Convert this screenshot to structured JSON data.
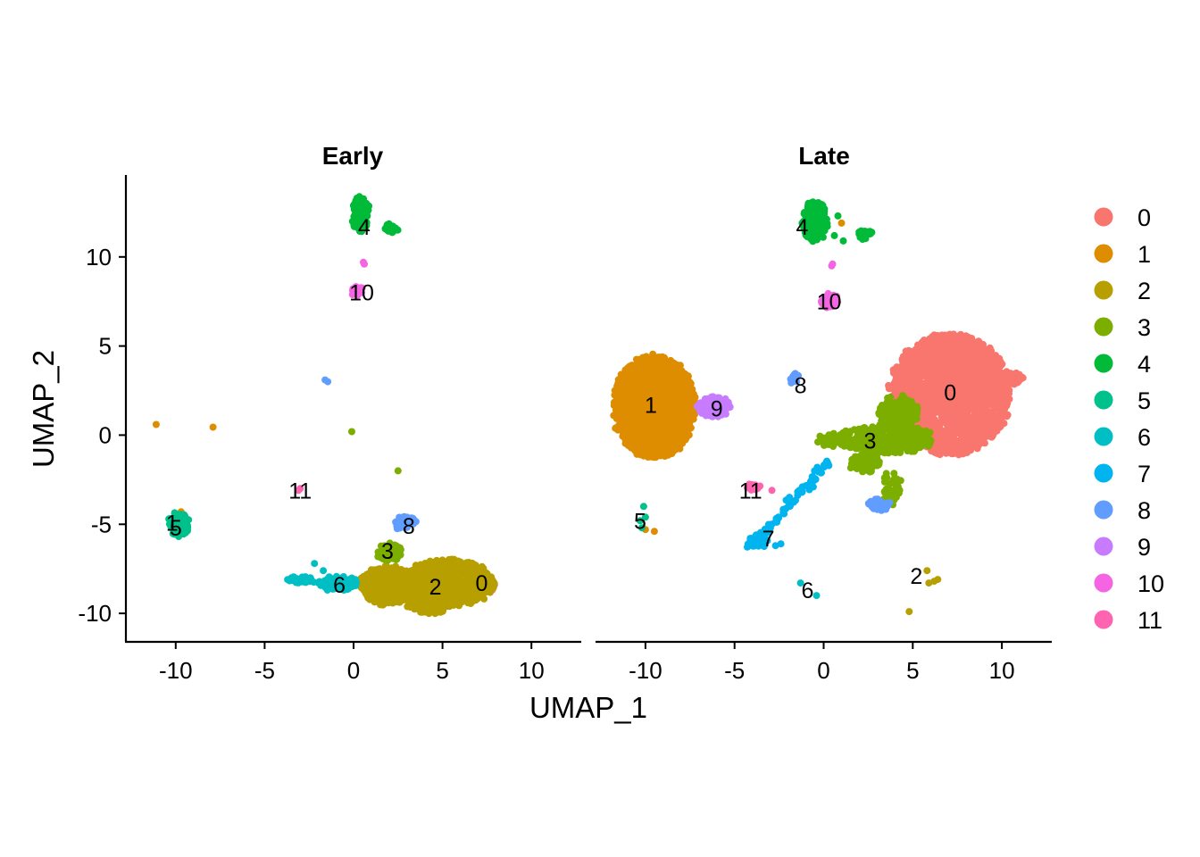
{
  "chart_data": {
    "type": "scatter",
    "xlabel": "UMAP_1",
    "ylabel": "UMAP_2",
    "xlim": [
      -12.8,
      12.8
    ],
    "ylim": [
      -11.6,
      14.6
    ],
    "x_ticks": [
      -10,
      -5,
      0,
      5,
      10
    ],
    "y_ticks": [
      -10,
      -5,
      0,
      5,
      10
    ],
    "x_tick_labels": [
      "-10",
      "-5",
      "0",
      "5",
      "10"
    ],
    "y_tick_labels": [
      "-10",
      "-5",
      "0",
      "5",
      "10"
    ],
    "legend_position": "right",
    "legend": [
      {
        "label": "0",
        "color": "#F8766D"
      },
      {
        "label": "1",
        "color": "#DE8C00"
      },
      {
        "label": "2",
        "color": "#B79F00"
      },
      {
        "label": "3",
        "color": "#7CAE00"
      },
      {
        "label": "4",
        "color": "#00BA38"
      },
      {
        "label": "5",
        "color": "#00C08B"
      },
      {
        "label": "6",
        "color": "#00BFC4"
      },
      {
        "label": "7",
        "color": "#00B4F0"
      },
      {
        "label": "8",
        "color": "#619CFF"
      },
      {
        "label": "9",
        "color": "#C77CFF"
      },
      {
        "label": "10",
        "color": "#F564E3"
      },
      {
        "label": "11",
        "color": "#FF64B0"
      }
    ],
    "facets": [
      {
        "title": "Early",
        "clusters": [
          {
            "cluster": "0",
            "shape": "blob",
            "cx": 7.3,
            "cy": -8.4,
            "rx": 0.7,
            "ry": 0.4,
            "n": 50
          },
          {
            "cluster": "1",
            "shape": "points",
            "points": [
              [
                -11.1,
                0.6
              ],
              [
                -7.9,
                0.45
              ],
              [
                -9.7,
                -4.3
              ],
              [
                -9.5,
                -4.5
              ]
            ]
          },
          {
            "cluster": "2",
            "shape": "blob",
            "cx": 5.3,
            "cy": -8.3,
            "rx": 2.6,
            "ry": 1.3,
            "n": 700
          },
          {
            "cluster": "2",
            "shape": "blob",
            "cx": 1.8,
            "cy": -8.4,
            "rx": 1.4,
            "ry": 1.1,
            "n": 320
          },
          {
            "cluster": "2",
            "shape": "blob",
            "cx": 4.2,
            "cy": -9.5,
            "rx": 1.2,
            "ry": 0.5,
            "n": 120
          },
          {
            "cluster": "3",
            "shape": "blob",
            "cx": 2.0,
            "cy": -6.6,
            "rx": 0.7,
            "ry": 0.5,
            "n": 60
          },
          {
            "cluster": "3",
            "shape": "points",
            "points": [
              [
                -0.1,
                0.2
              ],
              [
                2.5,
                -2.0
              ]
            ]
          },
          {
            "cluster": "4",
            "shape": "blob",
            "cx": 0.4,
            "cy": 12.4,
            "rx": 0.45,
            "ry": 1.0,
            "n": 110
          },
          {
            "cluster": "4",
            "shape": "blob",
            "cx": 2.1,
            "cy": 11.6,
            "rx": 0.35,
            "ry": 0.25,
            "n": 25
          },
          {
            "cluster": "5",
            "shape": "blob",
            "cx": -9.8,
            "cy": -5.0,
            "rx": 0.55,
            "ry": 0.6,
            "n": 170
          },
          {
            "cluster": "6",
            "shape": "blob",
            "cx": -0.9,
            "cy": -8.3,
            "rx": 1.1,
            "ry": 0.35,
            "n": 90
          },
          {
            "cluster": "6",
            "shape": "blob",
            "cx": -2.9,
            "cy": -8.1,
            "rx": 0.8,
            "ry": 0.15,
            "n": 40
          },
          {
            "cluster": "6",
            "shape": "points",
            "points": [
              [
                -2.2,
                -7.2
              ],
              [
                -1.7,
                -7.6
              ]
            ]
          },
          {
            "cluster": "8",
            "shape": "blob",
            "cx": 2.9,
            "cy": -4.9,
            "rx": 0.6,
            "ry": 0.35,
            "n": 45
          },
          {
            "cluster": "8",
            "shape": "points",
            "points": [
              [
                -1.6,
                3.1
              ],
              [
                -1.45,
                3.0
              ]
            ]
          },
          {
            "cluster": "10",
            "shape": "blob",
            "cx": 0.2,
            "cy": 8.1,
            "rx": 0.3,
            "ry": 0.25,
            "n": 25
          },
          {
            "cluster": "10",
            "shape": "points",
            "points": [
              [
                0.6,
                9.6
              ],
              [
                0.55,
                9.7
              ]
            ]
          },
          {
            "cluster": "11",
            "shape": "points",
            "points": [
              [
                -3.0,
                -3.0
              ],
              [
                -3.1,
                -3.1
              ]
            ]
          }
        ],
        "labels": [
          {
            "text": "0",
            "x": 7.2,
            "y": -8.3
          },
          {
            "text": "1",
            "x": -10.2,
            "y": -4.9
          },
          {
            "text": "2",
            "x": 4.6,
            "y": -8.5
          },
          {
            "text": "3",
            "x": 1.9,
            "y": -6.5
          },
          {
            "text": "4",
            "x": 0.6,
            "y": 11.7
          },
          {
            "text": "5",
            "x": -10.0,
            "y": -5.2
          },
          {
            "text": "6",
            "x": -0.8,
            "y": -8.4
          },
          {
            "text": "8",
            "x": 3.1,
            "y": -5.1
          },
          {
            "text": "10",
            "x": 0.45,
            "y": 8.0
          },
          {
            "text": "11",
            "x": -3.0,
            "y": -3.1
          }
        ]
      },
      {
        "title": "Late",
        "clusters": [
          {
            "cluster": "0",
            "shape": "blob",
            "cx": 7.1,
            "cy": 2.3,
            "rx": 3.4,
            "ry": 3.4,
            "n": 1800
          },
          {
            "cluster": "0",
            "shape": "blob",
            "cx": 10.4,
            "cy": 3.2,
            "rx": 0.8,
            "ry": 0.35,
            "n": 50
          },
          {
            "cluster": "1",
            "shape": "blob",
            "cx": -9.5,
            "cy": 1.6,
            "rx": 2.3,
            "ry": 2.9,
            "n": 1500
          },
          {
            "cluster": "1",
            "shape": "points",
            "points": [
              [
                -10.0,
                -5.3
              ],
              [
                -9.5,
                -5.4
              ],
              [
                1.0,
                11.9
              ]
            ]
          },
          {
            "cluster": "2",
            "shape": "points",
            "points": [
              [
                5.8,
                -7.6
              ],
              [
                5.9,
                -8.3
              ],
              [
                6.2,
                -8.2
              ],
              [
                6.4,
                -8.1
              ],
              [
                4.8,
                -9.9
              ]
            ]
          },
          {
            "cluster": "3",
            "shape": "blob",
            "cx": 3.5,
            "cy": -0.2,
            "rx": 2.6,
            "ry": 0.8,
            "n": 320
          },
          {
            "cluster": "3",
            "shape": "blob",
            "cx": 4.2,
            "cy": 1.3,
            "rx": 1.2,
            "ry": 0.9,
            "n": 120
          },
          {
            "cluster": "3",
            "shape": "blob",
            "cx": 2.3,
            "cy": -1.6,
            "rx": 0.9,
            "ry": 0.5,
            "n": 90
          },
          {
            "cluster": "3",
            "shape": "blob",
            "cx": 0.8,
            "cy": -0.3,
            "rx": 1.2,
            "ry": 0.3,
            "n": 80
          },
          {
            "cluster": "3",
            "shape": "blob",
            "cx": 3.8,
            "cy": -3.0,
            "rx": 0.5,
            "ry": 1.0,
            "n": 40
          },
          {
            "cluster": "4",
            "shape": "blob",
            "cx": -0.5,
            "cy": 12.0,
            "rx": 0.7,
            "ry": 1.1,
            "n": 170
          },
          {
            "cluster": "4",
            "shape": "blob",
            "cx": 2.3,
            "cy": 11.3,
            "rx": 0.4,
            "ry": 0.25,
            "n": 20
          },
          {
            "cluster": "4",
            "shape": "points",
            "points": [
              [
                0.8,
                12.3
              ],
              [
                0.6,
                11.2
              ],
              [
                1.1,
                10.9
              ]
            ]
          },
          {
            "cluster": "5",
            "shape": "points",
            "points": [
              [
                -10.1,
                -4.0
              ],
              [
                -10.3,
                -4.8
              ],
              [
                -10.2,
                -5.2
              ],
              [
                -10.0,
                -4.6
              ]
            ]
          },
          {
            "cluster": "6",
            "shape": "points",
            "points": [
              [
                -1.3,
                -8.3
              ],
              [
                -0.4,
                -9.0
              ]
            ]
          },
          {
            "cluster": "7",
            "shape": "line",
            "from": [
              -4.2,
              -6.3
            ],
            "to": [
              0.3,
              -1.5
            ],
            "spread": 0.25,
            "n": 80
          },
          {
            "cluster": "7",
            "shape": "blob",
            "cx": -3.7,
            "cy": -5.9,
            "rx": 0.6,
            "ry": 0.3,
            "n": 30
          },
          {
            "cluster": "7",
            "shape": "points",
            "points": [
              [
                -2.7,
                -6.2
              ],
              [
                -2.4,
                -6.1
              ]
            ]
          },
          {
            "cluster": "8",
            "shape": "blob",
            "cx": -1.6,
            "cy": 3.2,
            "rx": 0.3,
            "ry": 0.3,
            "n": 15
          },
          {
            "cluster": "8",
            "shape": "blob",
            "cx": 3.1,
            "cy": -3.9,
            "rx": 0.6,
            "ry": 0.35,
            "n": 40
          },
          {
            "cluster": "9",
            "shape": "blob",
            "cx": -6.2,
            "cy": 1.6,
            "rx": 0.9,
            "ry": 0.6,
            "n": 130
          },
          {
            "cluster": "10",
            "shape": "blob",
            "cx": 0.3,
            "cy": 7.6,
            "rx": 0.45,
            "ry": 0.4,
            "n": 40
          },
          {
            "cluster": "10",
            "shape": "points",
            "points": [
              [
                0.5,
                9.6
              ],
              [
                0.45,
                9.5
              ]
            ]
          },
          {
            "cluster": "11",
            "shape": "blob",
            "cx": -4.0,
            "cy": -2.9,
            "rx": 0.4,
            "ry": 0.2,
            "n": 15
          },
          {
            "cluster": "11",
            "shape": "points",
            "points": [
              [
                -2.9,
                -3.1
              ]
            ]
          }
        ],
        "labels": [
          {
            "text": "0",
            "x": 7.1,
            "y": 2.4
          },
          {
            "text": "1",
            "x": -9.7,
            "y": 1.7
          },
          {
            "text": "2",
            "x": 5.2,
            "y": -7.9
          },
          {
            "text": "3",
            "x": 2.6,
            "y": -0.3
          },
          {
            "text": "4",
            "x": -1.2,
            "y": 11.7
          },
          {
            "text": "5",
            "x": -10.3,
            "y": -4.8
          },
          {
            "text": "6",
            "x": -0.9,
            "y": -8.7
          },
          {
            "text": "7",
            "x": -3.1,
            "y": -5.8
          },
          {
            "text": "8",
            "x": -1.3,
            "y": 2.8
          },
          {
            "text": "9",
            "x": -6.0,
            "y": 1.5
          },
          {
            "text": "10",
            "x": 0.3,
            "y": 7.5
          },
          {
            "text": "11",
            "x": -4.1,
            "y": -3.1
          }
        ]
      }
    ]
  }
}
